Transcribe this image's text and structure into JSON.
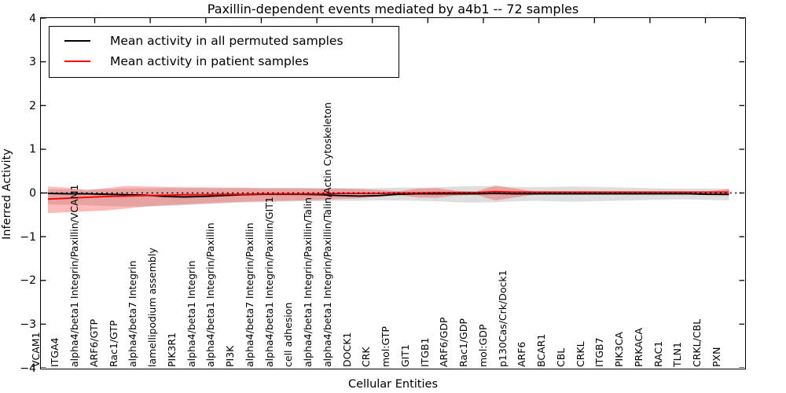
{
  "chart_data": {
    "type": "line",
    "title": "Paxillin-dependent events mediated by a4b1 -- 72 samples",
    "xlabel": "Cellular Entities",
    "ylabel": "Inferred Activity",
    "ylim": [
      -4,
      4
    ],
    "yticks": [
      4,
      3,
      2,
      1,
      0,
      -1,
      -2,
      -3,
      -4
    ],
    "grid": false,
    "legend_position": "upper left",
    "zero_line": {
      "y": 0,
      "style": "dotted",
      "color": "#000000"
    },
    "categories": [
      "VCAM1",
      "ITGA4",
      "alpha4/beta1 Integrin/Paxillin/VCAM1",
      "ARF6/GTP",
      "Rac1/GTP",
      "alpha4/beta7 Integrin",
      "lamellipodium assembly",
      "PIK3R1",
      "alpha4/beta1 Integrin",
      "alpha4/beta1 Integrin/Paxillin",
      "PI3K",
      "alpha4/beta7 Integrin/Paxillin",
      "alpha4/beta1 Integrin/Paxillin/GIT1",
      "cell adhesion",
      "alpha4/beta1 Integrin/Paxillin/Talin",
      "alpha4/beta1 Integrin/Paxillin/Talin/Actin Cytoskeleton",
      "DOCK1",
      "CRK",
      "mol:GTP",
      "GIT1",
      "ITGB1",
      "ARF6/GDP",
      "Rac1/GDP",
      "mol:GDP",
      "p130Cas/Crk/Dock1",
      "ARF6",
      "BCAR1",
      "CBL",
      "CRKL",
      "ITGB7",
      "PIK3CA",
      "PRKACA",
      "RAC1",
      "TLN1",
      "CRKL/CBL",
      "PXN"
    ],
    "series": [
      {
        "name": "Mean activity in all permuted samples",
        "color": "#000000",
        "values": [
          -0.01,
          -0.02,
          -0.02,
          -0.03,
          -0.04,
          -0.05,
          -0.08,
          -0.09,
          -0.08,
          -0.06,
          -0.04,
          -0.03,
          -0.03,
          -0.03,
          -0.04,
          -0.06,
          -0.07,
          -0.06,
          -0.03,
          -0.02,
          -0.02,
          -0.02,
          -0.02,
          -0.01,
          -0.02,
          -0.02,
          -0.02,
          -0.02,
          -0.02,
          -0.02,
          -0.02,
          -0.02,
          -0.02,
          -0.02,
          -0.03,
          -0.03
        ]
      },
      {
        "name": "Mean activity in patient samples",
        "color": "#ff0000",
        "values": [
          -0.14,
          -0.12,
          -0.1,
          -0.08,
          -0.07,
          -0.06,
          -0.05,
          -0.04,
          -0.04,
          -0.03,
          -0.03,
          -0.02,
          -0.02,
          -0.02,
          -0.02,
          -0.01,
          -0.01,
          -0.01,
          0.0,
          0.0,
          0.01,
          0.01,
          0.01,
          0.03,
          0.02,
          0.02,
          0.02,
          0.02,
          0.02,
          0.02,
          0.02,
          0.02,
          0.02,
          0.02,
          0.02,
          0.02
        ]
      }
    ],
    "bands": [
      {
        "name": "permuted samples spread",
        "color": "#888888",
        "opacity": 0.28,
        "upper": [
          0.08,
          0.08,
          0.09,
          0.09,
          0.1,
          0.1,
          0.11,
          0.11,
          0.11,
          0.11,
          0.11,
          0.11,
          0.11,
          0.11,
          0.11,
          0.11,
          0.11,
          0.11,
          0.12,
          0.12,
          0.13,
          0.15,
          0.16,
          0.15,
          0.14,
          0.13,
          0.14,
          0.15,
          0.14,
          0.13,
          0.12,
          0.11,
          0.1,
          0.1,
          0.1,
          0.1
        ],
        "lower": [
          -0.26,
          -0.27,
          -0.28,
          -0.3,
          -0.31,
          -0.31,
          -0.3,
          -0.28,
          -0.26,
          -0.24,
          -0.22,
          -0.21,
          -0.2,
          -0.19,
          -0.19,
          -0.18,
          -0.18,
          -0.17,
          -0.17,
          -0.18,
          -0.19,
          -0.21,
          -0.22,
          -0.21,
          -0.19,
          -0.18,
          -0.19,
          -0.2,
          -0.19,
          -0.18,
          -0.17,
          -0.16,
          -0.15,
          -0.15,
          -0.16,
          -0.17
        ]
      },
      {
        "name": "patient samples spread",
        "color": "#ff0000",
        "opacity": 0.27,
        "upper": [
          0.15,
          0.12,
          0.06,
          0.11,
          0.16,
          0.15,
          0.14,
          0.13,
          0.13,
          0.12,
          0.12,
          0.11,
          0.11,
          0.11,
          0.1,
          0.1,
          0.09,
          0.07,
          0.04,
          0.1,
          0.11,
          0.05,
          0.03,
          0.17,
          0.1,
          0.03,
          0.03,
          0.03,
          0.03,
          0.03,
          0.03,
          0.03,
          0.03,
          0.03,
          0.04,
          0.09
        ],
        "lower": [
          -0.46,
          -0.44,
          -0.42,
          -0.4,
          -0.36,
          -0.31,
          -0.28,
          -0.26,
          -0.24,
          -0.22,
          -0.2,
          -0.19,
          -0.18,
          -0.17,
          -0.16,
          -0.14,
          -0.12,
          -0.09,
          -0.05,
          -0.1,
          -0.11,
          -0.06,
          -0.04,
          -0.17,
          -0.1,
          -0.04,
          -0.03,
          -0.03,
          -0.03,
          -0.03,
          -0.03,
          -0.03,
          -0.03,
          -0.03,
          -0.04,
          -0.07
        ]
      }
    ]
  }
}
